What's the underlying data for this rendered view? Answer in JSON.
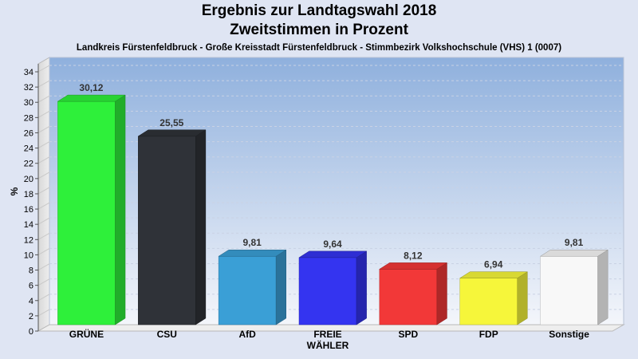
{
  "chart_data": {
    "type": "bar",
    "title": "Ergebnis zur Landtagswahl 2018",
    "subtitle": "Zweitstimmen in Prozent",
    "subtitle2": "Landkreis Fürstenfeldbruck - Große Kreisstadt Fürstenfeldbruck - Stimmbezirk Volkshochschule (VHS) 1 (0007)",
    "ylabel": "%",
    "ylim": [
      0,
      34
    ],
    "ytick_step": 2,
    "grid": true,
    "categories": [
      "GRÜNE",
      "CSU",
      "AfD",
      "FREIE WÄHLER",
      "SPD",
      "FDP",
      "Sonstige"
    ],
    "category_lines": [
      [
        "GRÜNE"
      ],
      [
        "CSU"
      ],
      [
        "AfD"
      ],
      [
        "FREIE",
        "WÄHLER"
      ],
      [
        "SPD"
      ],
      [
        "FDP"
      ],
      [
        "Sonstige"
      ]
    ],
    "values": [
      30.12,
      25.55,
      9.81,
      9.64,
      8.12,
      6.94,
      9.81
    ],
    "value_labels": [
      "30,12",
      "25,55",
      "9,81",
      "9,64",
      "8,12",
      "6,94",
      "9,81"
    ],
    "colors": [
      "#2ef03a",
      "#2f3238",
      "#3a9fd6",
      "#3434f0",
      "#f23838",
      "#f6f63a",
      "#f8f8f8"
    ]
  }
}
